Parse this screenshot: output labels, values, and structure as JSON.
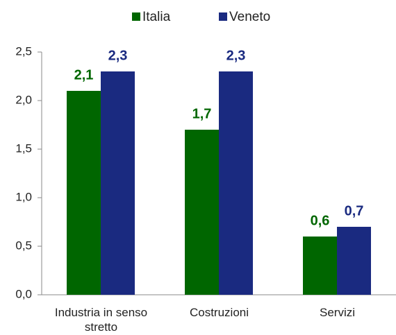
{
  "chart_data": {
    "type": "bar",
    "categories": [
      "Industria in senso stretto",
      "Costruzioni",
      "Servizi"
    ],
    "series": [
      {
        "name": "Italia",
        "color": "#006600",
        "values": [
          2.1,
          1.7,
          0.6
        ],
        "value_labels": [
          "2,1",
          "1,7",
          "0,6"
        ]
      },
      {
        "name": "Veneto",
        "color": "#1a2a80",
        "values": [
          2.3,
          2.3,
          0.7
        ],
        "value_labels": [
          "2,3",
          "2,3",
          "0,7"
        ]
      }
    ],
    "ylim": [
      0,
      2.5
    ],
    "yticks": [
      {
        "value": 0,
        "label": "0,0"
      },
      {
        "value": 0.5,
        "label": "0,5"
      },
      {
        "value": 1,
        "label": "1,0"
      },
      {
        "value": 1.5,
        "label": "1,5"
      },
      {
        "value": 2,
        "label": "2,0"
      },
      {
        "value": 2.5,
        "label": "2,5"
      }
    ],
    "legend": "top"
  }
}
